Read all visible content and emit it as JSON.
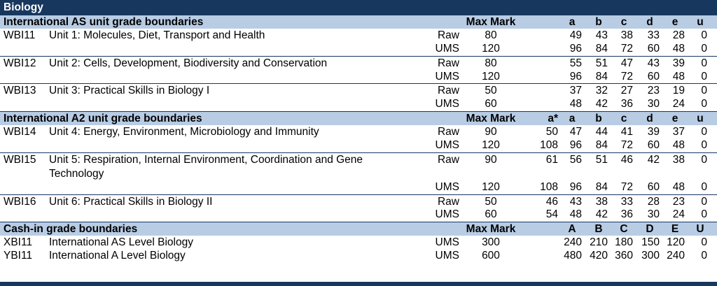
{
  "title": "Biology",
  "as_section": {
    "heading": "International AS unit grade boundaries",
    "max_mark_label": "Max Mark",
    "grades": [
      "a",
      "b",
      "c",
      "d",
      "e",
      "u"
    ]
  },
  "as_units": [
    {
      "code": "WBI11",
      "title": "Unit 1: Molecules, Diet, Transport and Health",
      "rows": [
        {
          "type": "Raw",
          "max": "80",
          "a": "49",
          "b": "43",
          "c": "38",
          "d": "33",
          "e": "28",
          "u": "0"
        },
        {
          "type": "UMS",
          "max": "120",
          "a": "96",
          "b": "84",
          "c": "72",
          "d": "60",
          "e": "48",
          "u": "0"
        }
      ]
    },
    {
      "code": "WBI12",
      "title": "Unit 2: Cells, Development, Biodiversity and Conservation",
      "rows": [
        {
          "type": "Raw",
          "max": "80",
          "a": "55",
          "b": "51",
          "c": "47",
          "d": "43",
          "e": "39",
          "u": "0"
        },
        {
          "type": "UMS",
          "max": "120",
          "a": "96",
          "b": "84",
          "c": "72",
          "d": "60",
          "e": "48",
          "u": "0"
        }
      ]
    },
    {
      "code": "WBI13",
      "title": "Unit 3: Practical Skills in Biology I",
      "rows": [
        {
          "type": "Raw",
          "max": "50",
          "a": "37",
          "b": "32",
          "c": "27",
          "d": "23",
          "e": "19",
          "u": "0"
        },
        {
          "type": "UMS",
          "max": "60",
          "a": "48",
          "b": "42",
          "c": "36",
          "d": "30",
          "e": "24",
          "u": "0"
        }
      ]
    }
  ],
  "a2_section": {
    "heading": "International A2 unit grade boundaries",
    "max_mark_label": "Max Mark",
    "grades": [
      "a*",
      "a",
      "b",
      "c",
      "d",
      "e",
      "u"
    ]
  },
  "a2_units": [
    {
      "code": "WBI14",
      "title": "Unit 4: Energy, Environment, Microbiology and Immunity",
      "rows": [
        {
          "type": "Raw",
          "max": "90",
          "astar": "50",
          "a": "47",
          "b": "44",
          "c": "41",
          "d": "39",
          "e": "37",
          "u": "0"
        },
        {
          "type": "UMS",
          "max": "120",
          "astar": "108",
          "a": "96",
          "b": "84",
          "c": "72",
          "d": "60",
          "e": "48",
          "u": "0"
        }
      ]
    },
    {
      "code": "WBI15",
      "title": "Unit 5: Respiration, Internal Environment, Coordination and Gene Technology",
      "rows": [
        {
          "type": "Raw",
          "max": "90",
          "astar": "61",
          "a": "56",
          "b": "51",
          "c": "46",
          "d": "42",
          "e": "38",
          "u": "0"
        },
        {
          "type": "UMS",
          "max": "120",
          "astar": "108",
          "a": "96",
          "b": "84",
          "c": "72",
          "d": "60",
          "e": "48",
          "u": "0"
        }
      ]
    },
    {
      "code": "WBI16",
      "title": "Unit 6: Practical Skills in Biology II",
      "rows": [
        {
          "type": "Raw",
          "max": "50",
          "astar": "46",
          "a": "43",
          "b": "38",
          "c": "33",
          "d": "28",
          "e": "23",
          "u": "0"
        },
        {
          "type": "UMS",
          "max": "60",
          "astar": "54",
          "a": "48",
          "b": "42",
          "c": "36",
          "d": "30",
          "e": "24",
          "u": "0"
        }
      ]
    }
  ],
  "cashin_section": {
    "heading": "Cash-in grade boundaries",
    "max_mark_label": "Max Mark",
    "grades": [
      "A",
      "B",
      "C",
      "D",
      "E",
      "U"
    ]
  },
  "cashin_rows": [
    {
      "code": "XBI11",
      "title": "International AS Level Biology",
      "type": "UMS",
      "max": "300",
      "a": "240",
      "b": "210",
      "c": "180",
      "d": "150",
      "e": "120",
      "u": "0"
    },
    {
      "code": "YBI11",
      "title": "International A Level Biology",
      "type": "UMS",
      "max": "600",
      "a": "480",
      "b": "420",
      "c": "360",
      "d": "300",
      "e": "240",
      "u": "0"
    }
  ]
}
